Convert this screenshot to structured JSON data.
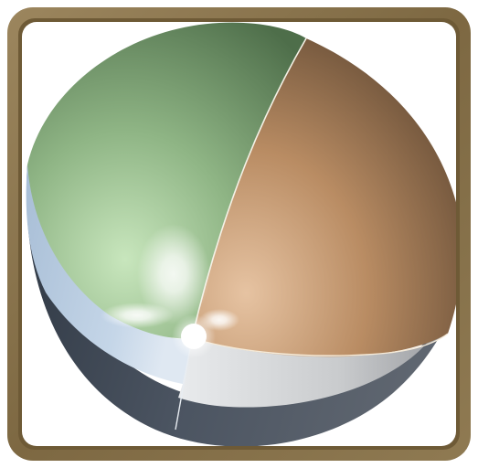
{
  "icon": {
    "name": "sphere-sector-icon",
    "frame_color": "#8a7450",
    "frame_inner_color": "#6e5a36",
    "background": "#ffffff",
    "segments": [
      {
        "name": "green-sector",
        "color": "#7ea676"
      },
      {
        "name": "tan-sector",
        "color": "#b88b62"
      },
      {
        "name": "blue-band",
        "color": "#b8cce0"
      },
      {
        "name": "grey-band",
        "color": "#c9cbcd"
      },
      {
        "name": "dark-band",
        "color": "#3f4854"
      }
    ]
  }
}
